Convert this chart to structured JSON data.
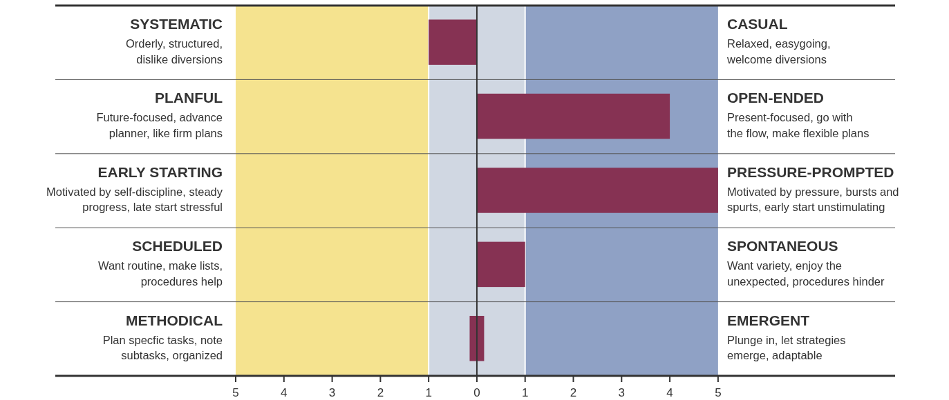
{
  "chart_data": {
    "type": "bar",
    "orientation": "horizontal",
    "categories": [
      "SYSTEMATIC",
      "PLANFUL",
      "EARLY STARTING",
      "SCHEDULED",
      "METHODICAL"
    ],
    "values": [
      -1,
      4,
      5,
      1,
      0.3
    ],
    "base": [
      0,
      0,
      0,
      0,
      -0.15
    ],
    "color": "#863253",
    "xlim": [
      -8.74,
      8.67
    ],
    "xticks": [
      {
        "value": -5,
        "label": "5"
      },
      {
        "value": -4,
        "label": "4"
      },
      {
        "value": -3,
        "label": "3"
      },
      {
        "value": -2,
        "label": "2"
      },
      {
        "value": -1,
        "label": "1"
      },
      0,
      1,
      2,
      3,
      4,
      5
    ],
    "bands": [
      {
        "axis": "x",
        "from": -5,
        "to": -1,
        "color": "#f5e38f"
      },
      {
        "axis": "x",
        "from": -1,
        "to": 1,
        "color": "#d0d7e2"
      },
      {
        "axis": "x",
        "from": 1,
        "to": 5,
        "color": "#8fa1c5"
      }
    ],
    "ref_lines": [
      {
        "axis": "x",
        "value": 0,
        "color": "#333333"
      }
    ],
    "annotations": [
      "Orderly, structured,\ndislike diversions",
      "CASUAL",
      "Relaxed, easygoing,\nwelcome diversions",
      "Future-focused, advance\nplanner, like firm plans",
      "OPEN-ENDED",
      "Present-focused, go with\nthe flow, make flexible plans",
      "Motivated by self-discipline, steady\nprogress, late start stressful",
      "PRESSURE-PROMPTED",
      "Motivated by pressure, bursts and\nspurts, early start unstimulating",
      "Want routine, make lists,\nprocedures help",
      "SPONTANEOUS",
      "Want variety, enjoy the\nunexpected, procedures hinder",
      "Plan specfic tasks, note\nsubtasks, organized",
      "EMERGENT",
      "Plunge in, let strategies\nemerge, adaptable"
    ]
  }
}
